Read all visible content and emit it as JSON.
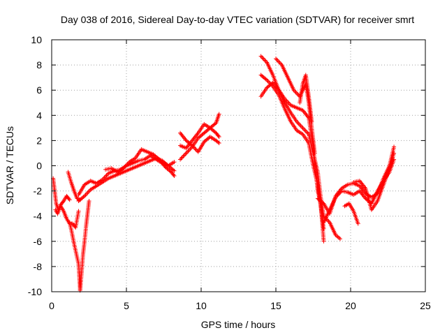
{
  "chart_data": {
    "type": "scatter",
    "title": "Day 038 of 2016, Sidereal Day-to-day VTEC variation (SDTVAR) for receiver smrt",
    "xlabel": "GPS time / hours",
    "ylabel": "SDTVAR / TECUs",
    "xlim": [
      0,
      25
    ],
    "ylim": [
      -10,
      10
    ],
    "xticks": [
      0,
      5,
      10,
      15,
      20,
      25
    ],
    "yticks": [
      -10,
      -8,
      -6,
      -4,
      -2,
      0,
      2,
      4,
      6,
      8,
      10
    ],
    "grid": true,
    "marker": "+",
    "series_color": "#ff0000",
    "series": [
      {
        "name": "SDTVAR",
        "segments": [
          {
            "x": [
              0.1,
              0.2,
              0.3,
              0.45,
              0.6,
              0.8,
              1.0,
              1.2,
              1.4,
              1.6,
              1.8
            ],
            "y": [
              -1.0,
              -2.0,
              -3.0,
              -3.5,
              -3.2,
              -3.6,
              -4.2,
              -4.6,
              -4.6,
              -4.9,
              -3.6
            ]
          },
          {
            "x": [
              0.25,
              0.4,
              0.6,
              0.8,
              1.0,
              1.2
            ],
            "y": [
              -3.5,
              -3.8,
              -3.1,
              -2.8,
              -2.4,
              -2.7
            ]
          },
          {
            "x": [
              1.1,
              1.3,
              1.5,
              1.7,
              1.9
            ],
            "y": [
              -0.5,
              -1.3,
              -2.0,
              -2.6,
              -2.7
            ]
          },
          {
            "x": [
              1.2,
              1.35,
              1.5,
              1.65,
              1.8,
              1.85,
              1.9
            ],
            "y": [
              -4.5,
              -5.3,
              -6.2,
              -7.0,
              -7.8,
              -8.8,
              -9.8
            ]
          },
          {
            "x": [
              1.9,
              2.0,
              2.1,
              2.2,
              2.3,
              2.4,
              2.5
            ],
            "y": [
              -9.9,
              -8.5,
              -7.0,
              -6.0,
              -4.8,
              -3.8,
              -2.8
            ]
          },
          {
            "x": [
              1.8,
              2.2,
              2.6,
              3.0,
              3.4,
              3.8,
              4.2,
              4.6,
              5.0,
              5.4,
              5.8,
              6.2,
              6.6,
              7.0,
              7.4,
              7.8,
              8.2
            ],
            "y": [
              -2.3,
              -1.5,
              -1.2,
              -1.4,
              -1.1,
              -0.6,
              -0.4,
              -0.3,
              0.0,
              0.2,
              0.4,
              0.5,
              0.8,
              0.5,
              0.2,
              0.0,
              0.3
            ]
          },
          {
            "x": [
              1.8,
              2.2,
              2.6,
              3.0,
              3.4,
              3.8,
              4.2,
              4.6,
              5.0,
              5.4,
              5.8,
              6.2,
              6.6,
              7.0,
              7.4,
              7.8,
              8.2
            ],
            "y": [
              -2.8,
              -2.4,
              -1.9,
              -1.6,
              -1.3,
              -1.0,
              -0.8,
              -0.6,
              -0.4,
              -0.2,
              0.0,
              0.2,
              0.4,
              0.6,
              0.4,
              0.0,
              -0.4
            ]
          },
          {
            "x": [
              3.6,
              4.0,
              4.4,
              4.8,
              5.2,
              5.6,
              6.0,
              6.4,
              6.8,
              7.2,
              7.6,
              8.0,
              8.2
            ],
            "y": [
              -0.3,
              -0.2,
              -0.5,
              -0.2,
              0.3,
              0.6,
              1.3,
              1.1,
              0.9,
              0.5,
              -0.1,
              -0.5,
              -0.8
            ]
          },
          {
            "x": [
              8.6,
              9.0,
              9.4,
              9.8,
              10.2,
              10.6,
              11.0,
              11.2
            ],
            "y": [
              0.5,
              1.0,
              1.5,
              2.2,
              2.6,
              3.0,
              3.4,
              4.1
            ]
          },
          {
            "x": [
              8.6,
              9.0,
              9.4,
              9.8,
              10.2,
              10.6,
              11.0,
              11.2
            ],
            "y": [
              1.6,
              1.4,
              2.0,
              2.6,
              3.3,
              3.0,
              2.6,
              2.3
            ]
          },
          {
            "x": [
              8.6,
              9.0,
              9.4,
              9.8,
              10.2,
              10.6,
              11.0,
              11.2
            ],
            "y": [
              2.6,
              2.0,
              1.6,
              1.1,
              1.9,
              2.3,
              2.0,
              1.8
            ]
          },
          {
            "x": [
              14.0,
              14.4,
              14.8,
              15.2,
              15.6,
              16.0,
              16.4,
              16.8,
              17.2,
              17.5,
              17.8,
              18.0,
              18.2,
              18.6,
              19.0,
              19.3
            ],
            "y": [
              8.7,
              8.2,
              7.2,
              6.0,
              5.0,
              4.2,
              3.5,
              3.0,
              2.5,
              1.0,
              -0.5,
              -2.5,
              -4.0,
              -4.5,
              -5.5,
              -5.8
            ]
          },
          {
            "x": [
              14.0,
              14.4,
              14.8,
              15.2,
              15.6,
              16.0,
              16.4,
              16.8,
              17.2,
              17.5,
              17.8,
              18.0,
              18.2
            ],
            "y": [
              7.2,
              6.8,
              6.3,
              5.6,
              4.5,
              3.5,
              2.8,
              2.5,
              1.8,
              0.0,
              -1.5,
              -3.2,
              -5.0
            ]
          },
          {
            "x": [
              14.0,
              14.4,
              14.8,
              15.2,
              15.6,
              16.0,
              16.4,
              16.8,
              17.2,
              17.5,
              17.8,
              18.0,
              18.2
            ],
            "y": [
              5.5,
              6.2,
              6.6,
              6.0,
              5.3,
              4.8,
              4.6,
              4.4,
              3.8,
              1.5,
              -2.0,
              -3.0,
              -6.0
            ]
          },
          {
            "x": [
              15.0,
              15.4,
              15.8,
              16.2,
              16.6,
              17.0,
              17.2,
              17.4,
              17.6
            ],
            "y": [
              8.5,
              8.0,
              7.0,
              6.0,
              5.5,
              6.5,
              5.0,
              3.0,
              1.0
            ]
          },
          {
            "x": [
              16.6,
              16.8,
              17.0,
              17.2,
              17.4
            ],
            "y": [
              5.0,
              6.5,
              7.2,
              5.5,
              3.5
            ]
          },
          {
            "x": [
              17.8,
              18.2,
              18.6,
              19.0,
              19.4,
              19.8,
              20.2,
              20.6,
              21.0,
              21.4,
              21.8,
              22.2,
              22.6,
              22.9
            ],
            "y": [
              -2.6,
              -3.0,
              -3.8,
              -2.4,
              -1.8,
              -1.5,
              -1.4,
              -1.6,
              -2.2,
              -2.5,
              -2.2,
              -1.0,
              0.0,
              1.5
            ]
          },
          {
            "x": [
              18.2,
              18.6,
              19.0,
              19.4,
              19.8,
              20.2,
              20.6,
              21.0,
              21.4,
              21.8,
              22.2,
              22.6,
              22.9
            ],
            "y": [
              -4.5,
              -3.5,
              -2.5,
              -2.0,
              -2.1,
              -2.3,
              -2.0,
              -2.6,
              -3.0,
              -2.0,
              -1.2,
              -0.5,
              0.5
            ]
          },
          {
            "x": [
              19.6,
              19.9,
              20.2,
              20.5
            ],
            "y": [
              -3.2,
              -3.0,
              -3.6,
              -4.6
            ]
          },
          {
            "x": [
              20.2,
              20.6,
              21.0,
              21.4,
              21.8,
              22.2,
              22.6,
              22.9
            ],
            "y": [
              -1.3,
              -1.2,
              -1.8,
              -3.5,
              -2.8,
              -1.5,
              -0.2,
              1.0
            ]
          }
        ]
      }
    ]
  }
}
